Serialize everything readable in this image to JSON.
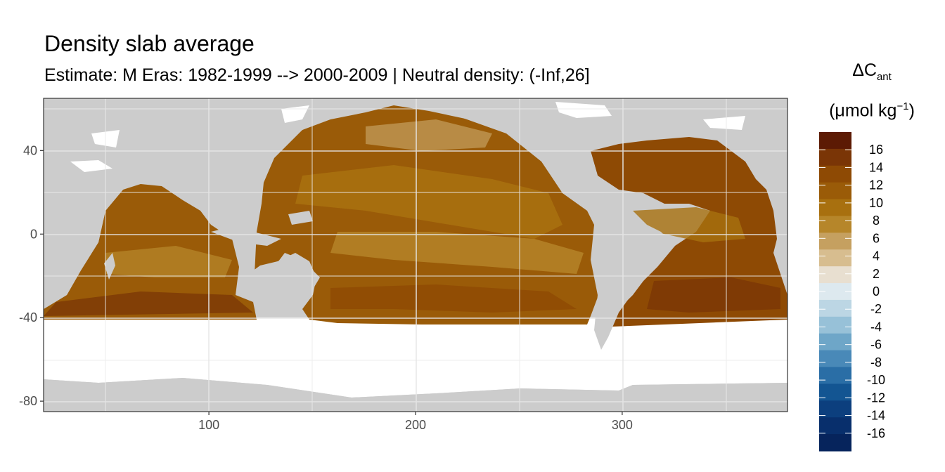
{
  "title": "Density slab average",
  "subtitle": "Estimate: M Eras: 1982-1999 --> 2000-2009 | Neutral density: (-Inf,26]",
  "legend": {
    "title_main": "ΔC",
    "title_sub": "ant",
    "unit_prefix": "(μmol kg",
    "unit_sup": "−1",
    "unit_suffix": ")",
    "labels": [
      "16",
      "14",
      "12",
      "10",
      "8",
      "6",
      "4",
      "2",
      "0",
      "-2",
      "-4",
      "-6",
      "-8",
      "-10",
      "-12",
      "-14",
      "-16"
    ],
    "colors": [
      "#5c1a04",
      "#7a3506",
      "#8e4a04",
      "#9a5b08",
      "#a8700f",
      "#b6862a",
      "#c5a060",
      "#d7bd8f",
      "#e8dfd0",
      "#dde9ef",
      "#bcd6e4",
      "#97c1d8",
      "#6ea6c8",
      "#4989b8",
      "#2a6ea6",
      "#135592",
      "#0c3f7e",
      "#082f6c",
      "#06245c"
    ]
  },
  "chart_data": {
    "type": "heatmap",
    "title": "Density slab average",
    "subtitle": "Estimate: M Eras: 1982-1999 --> 2000-2009 | Neutral density: (-Inf,26]",
    "xlabel": "",
    "ylabel": "",
    "xlim": [
      20,
      380
    ],
    "ylim": [
      -85,
      65
    ],
    "x_ticks": [
      100,
      200,
      300
    ],
    "y_ticks": [
      40,
      0,
      -40,
      -80
    ],
    "y_tick_labels": [
      "40",
      "0",
      "-40",
      "-80"
    ],
    "x_tick_labels": [
      "100",
      "200",
      "300"
    ],
    "value_range": [
      -16,
      16
    ],
    "grid": true,
    "colorbar_position": "right"
  }
}
